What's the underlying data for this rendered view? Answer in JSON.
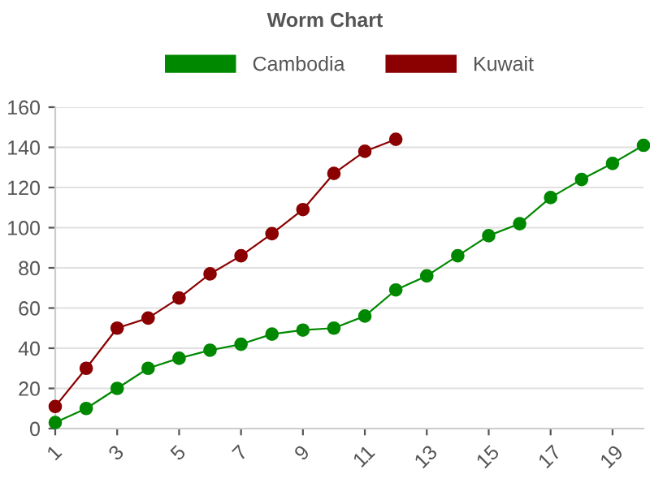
{
  "chart_data": {
    "type": "line",
    "title": "Worm Chart",
    "x": [
      1,
      2,
      3,
      4,
      5,
      6,
      7,
      8,
      9,
      10,
      11,
      12,
      13,
      14,
      15,
      16,
      17,
      18,
      19,
      20
    ],
    "series": [
      {
        "name": "Cambodia",
        "color": "#008800",
        "values": [
          3,
          10,
          20,
          30,
          35,
          39,
          42,
          47,
          49,
          50,
          56,
          69,
          76,
          86,
          96,
          102,
          115,
          124,
          132,
          141
        ]
      },
      {
        "name": "Kuwait",
        "color": "#8b0000",
        "x": [
          1,
          2,
          3,
          4,
          5,
          6,
          7,
          8,
          9,
          10,
          11,
          12
        ],
        "values": [
          11,
          30,
          50,
          55,
          65,
          77,
          86,
          97,
          109,
          127,
          138,
          144
        ]
      }
    ],
    "xlim": [
      1,
      20
    ],
    "xticks": [
      1,
      3,
      5,
      7,
      9,
      11,
      13,
      15,
      17,
      19
    ],
    "ylim": [
      0,
      160
    ],
    "yticks": [
      0,
      20,
      40,
      60,
      80,
      100,
      120,
      140,
      160
    ],
    "grid": "y",
    "legend": "top",
    "marker": "circle",
    "line_style": "solid"
  }
}
